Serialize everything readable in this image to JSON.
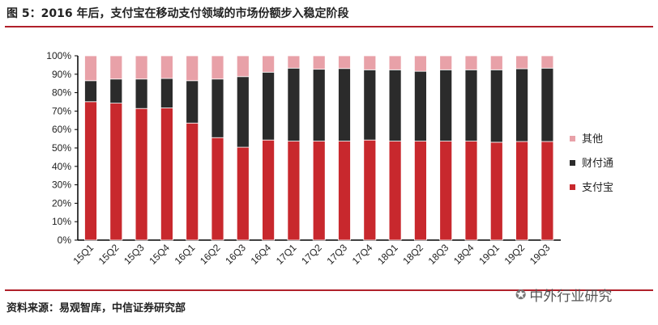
{
  "title": "图 5：2016 年后，支付宝在移动支付领域的市场份额步入稳定阶段",
  "source": "资料来源：易观智库，中信证券研究部",
  "watermark": "中外行业研究",
  "chart_data": {
    "type": "bar",
    "stacked": true,
    "categories": [
      "15Q1",
      "15Q2",
      "15Q3",
      "15Q4",
      "16Q1",
      "16Q2",
      "16Q3",
      "16Q4",
      "17Q1",
      "17Q2",
      "17Q3",
      "17Q4",
      "18Q1",
      "18Q2",
      "18Q3",
      "18Q4",
      "19Q1",
      "19Q2",
      "19Q3"
    ],
    "series": [
      {
        "name": "支付宝",
        "color": "#c8282d",
        "values": [
          75.1,
          74.3,
          71.4,
          71.7,
          63.5,
          55.6,
          50.4,
          54.3,
          53.7,
          53.7,
          53.7,
          54.3,
          53.7,
          53.7,
          53.7,
          53.7,
          53.1,
          53.5,
          53.5
        ]
      },
      {
        "name": "财付通",
        "color": "#2b2b2b",
        "values": [
          11.4,
          13.1,
          16.0,
          16.0,
          23.0,
          31.8,
          38.3,
          36.8,
          39.6,
          39.0,
          39.4,
          38.1,
          38.7,
          37.9,
          38.7,
          38.7,
          39.3,
          39.5,
          39.8
        ]
      },
      {
        "name": "其他",
        "color": "#e8a1a8",
        "values": [
          13.5,
          12.6,
          12.6,
          12.3,
          13.5,
          12.6,
          11.3,
          8.9,
          6.7,
          7.3,
          6.9,
          7.6,
          7.6,
          8.4,
          7.6,
          7.6,
          7.6,
          7.0,
          6.7
        ]
      }
    ],
    "ylim": [
      0,
      100
    ],
    "yticks": [
      "0%",
      "10%",
      "20%",
      "30%",
      "40%",
      "50%",
      "60%",
      "70%",
      "80%",
      "90%",
      "100%"
    ],
    "legend": [
      "其他",
      "财付通",
      "支付宝"
    ],
    "legend_position": "right",
    "grid": false
  }
}
